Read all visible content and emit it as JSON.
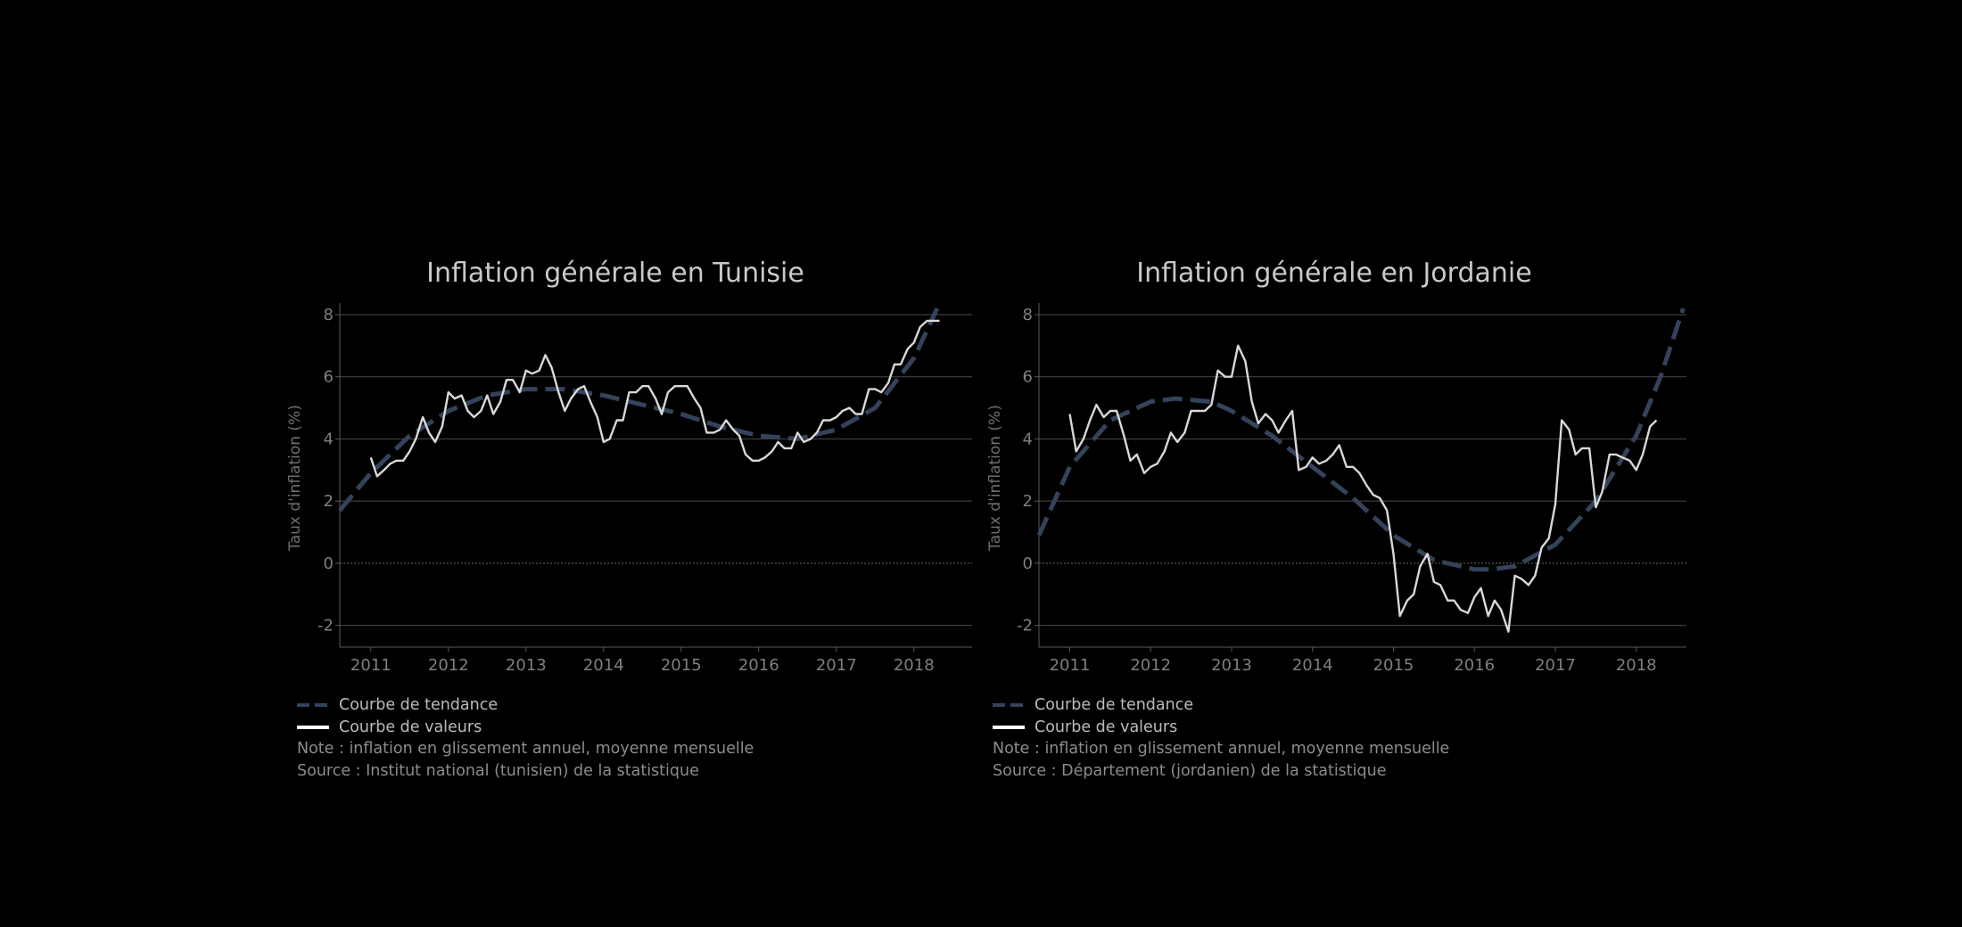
{
  "chart_data": [
    {
      "type": "line",
      "title": "Inflation générale en Tunisie",
      "ylabel": "Taux d'inflation (%)",
      "xlabel": "",
      "ylim": [
        -2.7,
        8.2
      ],
      "xlim": [
        2010.6,
        2018.75
      ],
      "yticks": [
        "-2",
        "0",
        "2",
        "4",
        "6",
        "8"
      ],
      "xticks": [
        "2011",
        "2012",
        "2013",
        "2014",
        "2015",
        "2016",
        "2017",
        "2018"
      ],
      "grid": true,
      "legend_position": "bottom-left",
      "series": [
        {
          "name": "Courbe de tendance",
          "style": "dashed",
          "color": "#34435b",
          "x": [
            2010.6,
            2011.0,
            2011.5,
            2012.0,
            2012.5,
            2013.0,
            2013.5,
            2014.0,
            2014.5,
            2015.0,
            2015.5,
            2016.0,
            2016.5,
            2017.0,
            2017.5,
            2018.0,
            2018.3
          ],
          "values": [
            1.7,
            2.9,
            4.1,
            4.9,
            5.4,
            5.6,
            5.6,
            5.4,
            5.1,
            4.8,
            4.4,
            4.1,
            4.0,
            4.3,
            5.0,
            6.6,
            8.2
          ]
        },
        {
          "name": "Courbe de valeurs",
          "style": "solid",
          "color": "#d8d8d8",
          "x": [
            2011.0,
            2011.08,
            2011.17,
            2011.25,
            2011.33,
            2011.42,
            2011.5,
            2011.58,
            2011.67,
            2011.75,
            2011.83,
            2011.92,
            2012.0,
            2012.08,
            2012.17,
            2012.25,
            2012.33,
            2012.42,
            2012.5,
            2012.58,
            2012.67,
            2012.75,
            2012.83,
            2012.92,
            2013.0,
            2013.08,
            2013.17,
            2013.25,
            2013.33,
            2013.42,
            2013.5,
            2013.58,
            2013.67,
            2013.75,
            2013.83,
            2013.92,
            2014.0,
            2014.08,
            2014.17,
            2014.25,
            2014.33,
            2014.42,
            2014.5,
            2014.58,
            2014.67,
            2014.75,
            2014.83,
            2014.92,
            2015.0,
            2015.08,
            2015.17,
            2015.25,
            2015.33,
            2015.42,
            2015.5,
            2015.58,
            2015.67,
            2015.75,
            2015.83,
            2015.92,
            2016.0,
            2016.08,
            2016.17,
            2016.25,
            2016.33,
            2016.42,
            2016.5,
            2016.58,
            2016.67,
            2016.75,
            2016.83,
            2016.92,
            2017.0,
            2017.08,
            2017.17,
            2017.25,
            2017.33,
            2017.42,
            2017.5,
            2017.58,
            2017.67,
            2017.75,
            2017.83,
            2017.92,
            2018.0,
            2018.08,
            2018.17,
            2018.25,
            2018.33
          ],
          "values": [
            3.4,
            2.8,
            3.0,
            3.2,
            3.3,
            3.3,
            3.6,
            4.0,
            4.7,
            4.2,
            3.9,
            4.4,
            5.5,
            5.3,
            5.4,
            4.9,
            4.7,
            4.9,
            5.4,
            4.8,
            5.2,
            5.9,
            5.9,
            5.5,
            6.2,
            6.1,
            6.2,
            6.7,
            6.3,
            5.5,
            4.9,
            5.3,
            5.6,
            5.7,
            5.2,
            4.7,
            3.9,
            4.0,
            4.6,
            4.6,
            5.5,
            5.5,
            5.7,
            5.7,
            5.3,
            4.8,
            5.5,
            5.7,
            5.7,
            5.7,
            5.3,
            5.0,
            4.2,
            4.2,
            4.3,
            4.6,
            4.3,
            4.1,
            3.5,
            3.3,
            3.3,
            3.4,
            3.6,
            3.9,
            3.7,
            3.7,
            4.2,
            3.9,
            4.0,
            4.2,
            4.6,
            4.6,
            4.7,
            4.9,
            5.0,
            4.8,
            4.8,
            5.6,
            5.6,
            5.5,
            5.8,
            6.4,
            6.4,
            6.9,
            7.1,
            7.6,
            7.8,
            7.8,
            7.8
          ]
        }
      ],
      "legend": [
        "Courbe de tendance",
        "Courbe de valeurs"
      ],
      "notes": [
        "Note : inflation en glissement annuel, moyenne mensuelle",
        "Source : Institut national (tunisien) de la statistique"
      ]
    },
    {
      "type": "line",
      "title": "Inflation générale en Jordanie",
      "ylabel": "Taux d'inflation (%)",
      "xlabel": "",
      "ylim": [
        -2.7,
        8.2
      ],
      "xlim": [
        2010.62,
        2018.62
      ],
      "yticks": [
        "-2",
        "0",
        "2",
        "4",
        "6",
        "8"
      ],
      "xticks": [
        "2011",
        "2012",
        "2013",
        "2014",
        "2015",
        "2016",
        "2017",
        "2018"
      ],
      "grid": true,
      "legend_position": "bottom-left",
      "series": [
        {
          "name": "Courbe de tendance",
          "style": "dashed",
          "color": "#34435b",
          "x": [
            2010.62,
            2011.0,
            2011.5,
            2012.0,
            2012.3,
            2012.75,
            2013.0,
            2013.5,
            2014.0,
            2014.5,
            2015.0,
            2015.5,
            2016.0,
            2016.2,
            2016.5,
            2017.0,
            2017.5,
            2018.0,
            2018.3,
            2018.58
          ],
          "values": [
            0.9,
            3.1,
            4.6,
            5.2,
            5.3,
            5.2,
            4.9,
            4.1,
            3.1,
            2.1,
            0.9,
            0.1,
            -0.2,
            -0.2,
            -0.1,
            0.6,
            2.0,
            4.1,
            6.0,
            8.2
          ]
        },
        {
          "name": "Courbe de valeurs",
          "style": "solid",
          "color": "#d8d8d8",
          "x": [
            2011.0,
            2011.08,
            2011.17,
            2011.25,
            2011.33,
            2011.42,
            2011.5,
            2011.58,
            2011.67,
            2011.75,
            2011.83,
            2011.92,
            2012.0,
            2012.08,
            2012.17,
            2012.25,
            2012.33,
            2012.42,
            2012.5,
            2012.58,
            2012.67,
            2012.75,
            2012.83,
            2012.92,
            2013.0,
            2013.08,
            2013.17,
            2013.25,
            2013.33,
            2013.42,
            2013.5,
            2013.58,
            2013.67,
            2013.75,
            2013.83,
            2013.92,
            2014.0,
            2014.08,
            2014.17,
            2014.25,
            2014.33,
            2014.42,
            2014.5,
            2014.58,
            2014.67,
            2014.75,
            2014.83,
            2014.92,
            2015.0,
            2015.08,
            2015.17,
            2015.25,
            2015.33,
            2015.42,
            2015.5,
            2015.58,
            2015.67,
            2015.75,
            2015.83,
            2015.92,
            2016.0,
            2016.08,
            2016.17,
            2016.25,
            2016.33,
            2016.42,
            2016.5,
            2016.58,
            2016.67,
            2016.75,
            2016.83,
            2016.92,
            2017.0,
            2017.08,
            2017.17,
            2017.25,
            2017.33,
            2017.42,
            2017.5,
            2017.58,
            2017.67,
            2017.75,
            2017.83,
            2017.92,
            2018.0,
            2018.08,
            2018.17,
            2018.25
          ],
          "values": [
            4.8,
            3.6,
            4.0,
            4.6,
            5.1,
            4.7,
            4.9,
            4.9,
            4.1,
            3.3,
            3.5,
            2.9,
            3.1,
            3.2,
            3.6,
            4.2,
            3.9,
            4.2,
            4.9,
            4.9,
            4.9,
            5.1,
            6.2,
            6.0,
            6.0,
            7.0,
            6.5,
            5.2,
            4.5,
            4.8,
            4.6,
            4.2,
            4.6,
            4.9,
            3.0,
            3.1,
            3.4,
            3.2,
            3.3,
            3.5,
            3.8,
            3.1,
            3.1,
            2.9,
            2.5,
            2.2,
            2.1,
            1.7,
            0.3,
            -1.7,
            -1.2,
            -1.0,
            -0.1,
            0.3,
            -0.6,
            -0.7,
            -1.2,
            -1.2,
            -1.5,
            -1.6,
            -1.1,
            -0.8,
            -1.7,
            -1.2,
            -1.5,
            -2.2,
            -0.4,
            -0.5,
            -0.7,
            -0.4,
            0.5,
            0.8,
            1.9,
            4.6,
            4.3,
            3.5,
            3.7,
            3.7,
            1.8,
            2.3,
            3.5,
            3.5,
            3.4,
            3.3,
            3.0,
            3.5,
            4.4,
            4.6
          ]
        }
      ],
      "legend": [
        "Courbe de tendance",
        "Courbe de valeurs"
      ],
      "notes": [
        "Note : inflation en glissement annuel, moyenne mensuelle",
        "Source : Département (jordanien) de la statistique"
      ]
    }
  ]
}
